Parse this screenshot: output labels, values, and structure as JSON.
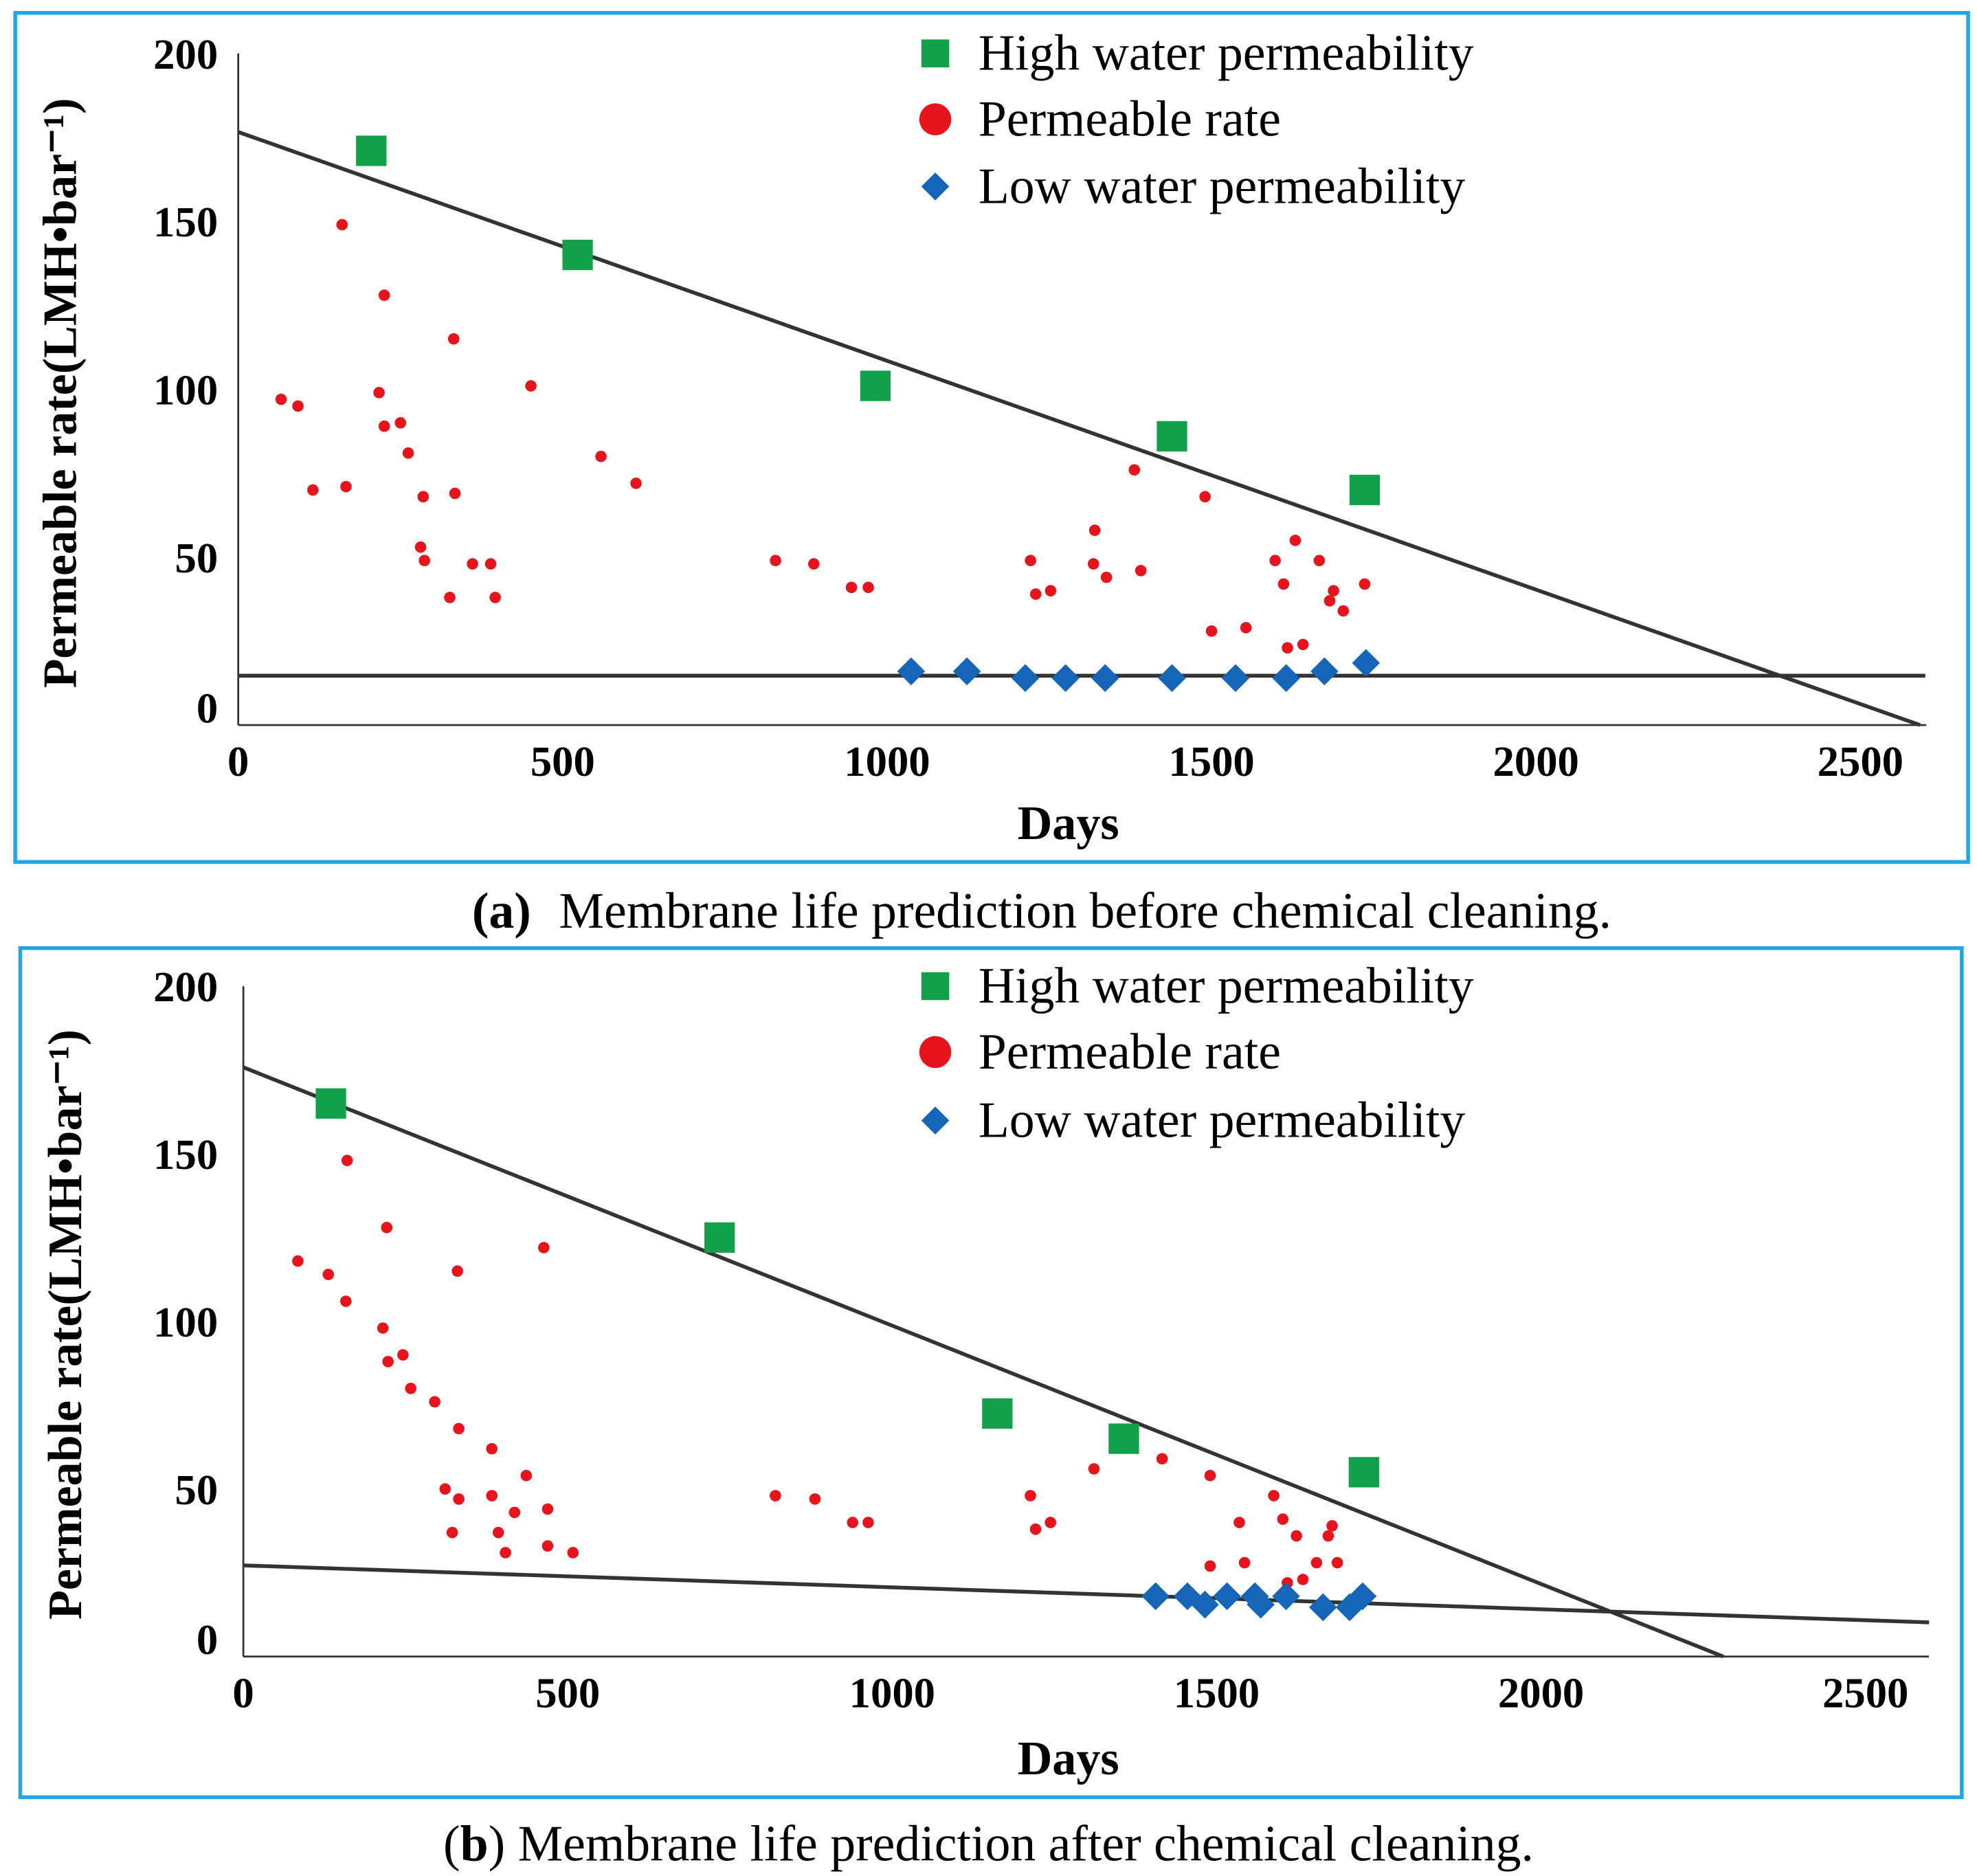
{
  "chart_data": [
    {
      "type": "scatter",
      "caption_label": "(a)",
      "caption_text": "Membrane life prediction before chemical cleaning.",
      "xlabel": "Days",
      "ylabel": "Permeable rate(LMH•bar⁻¹)",
      "xlim": [
        0,
        2600
      ],
      "ylim": [
        0,
        200
      ],
      "xticks": [
        "0",
        "500",
        "1000",
        "1500",
        "2000",
        "2500"
      ],
      "yticks": [
        "0",
        "50",
        "100",
        "150",
        "200"
      ],
      "legend_position": "top-right",
      "series": [
        {
          "name": "High water permeability",
          "marker": "square",
          "color": "#12a14b",
          "points": [
            [
              205,
              171
            ],
            [
              523,
              140
            ],
            [
              982,
              101
            ],
            [
              1439,
              86
            ],
            [
              1736,
              70
            ]
          ]
        },
        {
          "name": "Permeable rate",
          "marker": "circle",
          "color": "#e8141b",
          "points": [
            [
              66,
              97
            ],
            [
              92,
              95
            ],
            [
              115,
              70
            ],
            [
              160,
              149
            ],
            [
              166,
              71
            ],
            [
              225,
              128
            ],
            [
              217,
              99
            ],
            [
              225,
              89
            ],
            [
              250,
              90
            ],
            [
              262,
              81
            ],
            [
              285,
              68
            ],
            [
              281,
              53
            ],
            [
              287,
              49
            ],
            [
              332,
              115
            ],
            [
              334,
              69
            ],
            [
              326,
              38
            ],
            [
              361,
              48
            ],
            [
              389,
              48
            ],
            [
              396,
              38
            ],
            [
              451,
              101
            ],
            [
              559,
              80
            ],
            [
              613,
              72
            ],
            [
              828,
              49
            ],
            [
              887,
              48
            ],
            [
              945,
              41
            ],
            [
              971,
              41
            ],
            [
              1221,
              49
            ],
            [
              1229,
              39
            ],
            [
              1252,
              40
            ],
            [
              1320,
              58
            ],
            [
              1318,
              48
            ],
            [
              1338,
              44
            ],
            [
              1391,
              46
            ],
            [
              1381,
              76
            ],
            [
              1490,
              68
            ],
            [
              1500,
              28
            ],
            [
              1553,
              29
            ],
            [
              1598,
              49
            ],
            [
              1611,
              42
            ],
            [
              1629,
              55
            ],
            [
              1617,
              23
            ],
            [
              1641,
              24
            ],
            [
              1666,
              49
            ],
            [
              1688,
              40
            ],
            [
              1682,
              37
            ],
            [
              1703,
              34
            ],
            [
              1736,
              42
            ]
          ]
        },
        {
          "name": "Low water permeability",
          "marker": "diamond",
          "color": "#1565b8",
          "points": [
            [
              1037,
              16
            ],
            [
              1123,
              16
            ],
            [
              1213,
              14
            ],
            [
              1275,
              14
            ],
            [
              1336,
              14
            ],
            [
              1439,
              14
            ],
            [
              1537,
              14
            ],
            [
              1615,
              14
            ],
            [
              1674,
              16
            ],
            [
              1738,
              18.5
            ]
          ]
        }
      ],
      "trend_lines": [
        {
          "name": "high-trend",
          "from": [
            0,
            176.6
          ],
          "to": [
            2592,
            0
          ]
        },
        {
          "name": "low-trend",
          "from": [
            0,
            14.7
          ],
          "to": [
            2600,
            14.7
          ]
        }
      ]
    },
    {
      "type": "scatter",
      "caption_label": "b",
      "caption_text": "Membrane life prediction after chemical cleaning.",
      "xlabel": "Days",
      "ylabel": "Permeable rate(LMH•bar⁻¹)",
      "xlim": [
        0,
        2600
      ],
      "ylim": [
        0,
        200
      ],
      "xticks": [
        "0",
        "500",
        "1000",
        "1500",
        "2000",
        "2500"
      ],
      "yticks": [
        "0",
        "50",
        "100",
        "150",
        "200"
      ],
      "legend_position": "top-right",
      "series": [
        {
          "name": "High water permeability",
          "marker": "square",
          "color": "#12a14b",
          "points": [
            [
              135,
              165
            ],
            [
              734,
              125
            ],
            [
              1162,
              72.5
            ],
            [
              1357,
              65
            ],
            [
              1727,
              55
            ]
          ]
        },
        {
          "name": "Permeable rate",
          "marker": "circle",
          "color": "#e8141b",
          "points": [
            [
              84,
              118
            ],
            [
              131,
              114
            ],
            [
              160,
              148
            ],
            [
              158,
              106
            ],
            [
              221,
              128
            ],
            [
              215,
              98
            ],
            [
              223,
              88
            ],
            [
              246,
              90
            ],
            [
              258,
              80
            ],
            [
              295,
              76
            ],
            [
              330,
              115
            ],
            [
              332,
              68
            ],
            [
              383,
              62
            ],
            [
              311,
              50
            ],
            [
              332,
              47
            ],
            [
              322,
              37
            ],
            [
              383,
              48
            ],
            [
              393,
              37
            ],
            [
              418,
              43
            ],
            [
              404,
              31
            ],
            [
              436,
              54
            ],
            [
              463,
              122
            ],
            [
              469,
              44
            ],
            [
              469,
              33
            ],
            [
              508,
              31
            ],
            [
              820,
              48
            ],
            [
              881,
              47
            ],
            [
              939,
              40
            ],
            [
              963,
              40
            ],
            [
              1213,
              48
            ],
            [
              1221,
              38
            ],
            [
              1244,
              40
            ],
            [
              1311,
              56
            ],
            [
              1416,
              59
            ],
            [
              1490,
              54
            ],
            [
              1490,
              27
            ],
            [
              1535,
              40
            ],
            [
              1543,
              28
            ],
            [
              1588,
              48
            ],
            [
              1602,
              41
            ],
            [
              1623,
              36
            ],
            [
              1609,
              22
            ],
            [
              1633,
              23
            ],
            [
              1654,
              28
            ],
            [
              1672,
              36
            ],
            [
              1678,
              39
            ],
            [
              1686,
              28
            ]
          ]
        },
        {
          "name": "Low water permeability",
          "marker": "diamond",
          "color": "#1565b8",
          "points": [
            [
              1406,
              18
            ],
            [
              1455,
              18
            ],
            [
              1482,
              15.5
            ],
            [
              1516,
              18
            ],
            [
              1559,
              18
            ],
            [
              1568,
              15.5
            ],
            [
              1607,
              18
            ],
            [
              1664,
              14.7
            ],
            [
              1705,
              14.7
            ],
            [
              1725,
              18
            ]
          ]
        }
      ],
      "trend_lines": [
        {
          "name": "high-trend",
          "from": [
            0,
            175.8
          ],
          "to": [
            2281,
            0
          ]
        },
        {
          "name": "low-trend",
          "from": [
            0,
            27.2
          ],
          "to": [
            2598,
            10.2
          ]
        }
      ]
    }
  ]
}
